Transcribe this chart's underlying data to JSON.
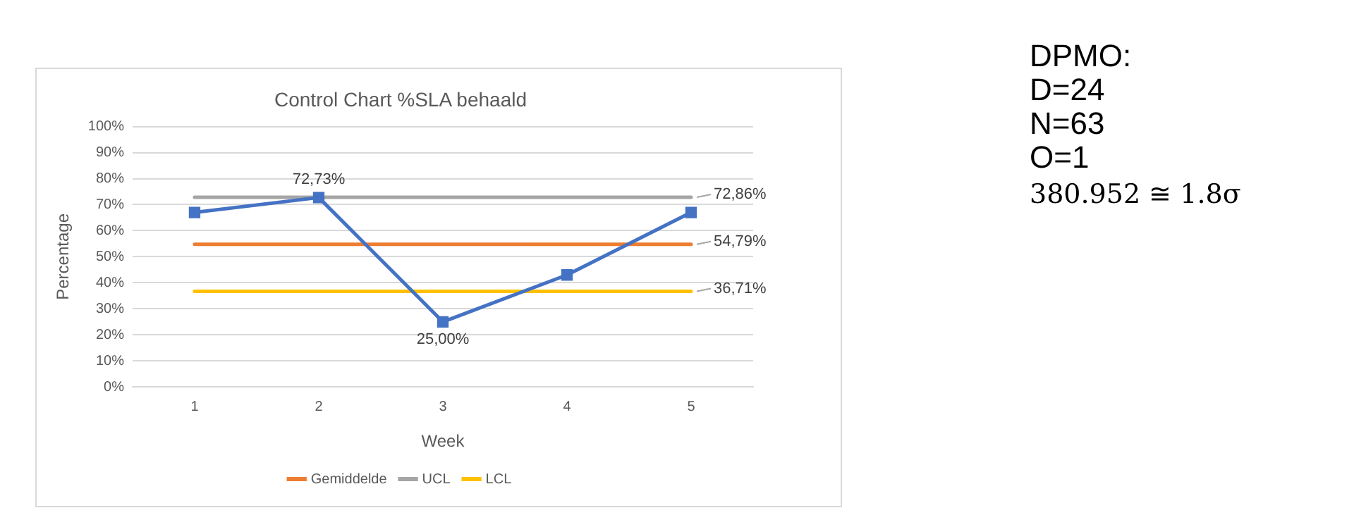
{
  "chart_data": {
    "type": "line",
    "title": "Control Chart %SLA behaald",
    "xlabel": "Week",
    "ylabel": "Percentage",
    "categories": [
      "1",
      "2",
      "3",
      "4",
      "5"
    ],
    "series": [
      {
        "color": "#4472c4",
        "marker": "square",
        "values": [
          67,
          72.73,
          25.0,
          43,
          67
        ],
        "value_labels": [
          null,
          "72,73%",
          "25,00%",
          null,
          null
        ]
      },
      {
        "name": "Gemiddelde",
        "color": "#ed7d31",
        "marker": "none",
        "values": [
          54.79,
          54.79,
          54.79,
          54.79,
          54.79
        ],
        "value_labels": [
          null,
          null,
          null,
          null,
          "54,79%"
        ]
      },
      {
        "name": "UCL",
        "color": "#a5a5a5",
        "marker": "none",
        "values": [
          72.86,
          72.86,
          72.86,
          72.86,
          72.86
        ],
        "value_labels": [
          null,
          null,
          null,
          null,
          "72,86%"
        ]
      },
      {
        "name": "LCL",
        "color": "#ffc000",
        "marker": "none",
        "values": [
          36.71,
          36.71,
          36.71,
          36.71,
          36.71
        ],
        "value_labels": [
          null,
          null,
          null,
          null,
          "36,71%"
        ]
      }
    ],
    "ylim": [
      0,
      100
    ],
    "yticks": [
      {
        "value": 0,
        "label": "0%"
      },
      {
        "value": 10,
        "label": "10%"
      },
      {
        "value": 20,
        "label": "20%"
      },
      {
        "value": 30,
        "label": "30%"
      },
      {
        "value": 40,
        "label": "40%"
      },
      {
        "value": 50,
        "label": "50%"
      },
      {
        "value": 60,
        "label": "60%"
      },
      {
        "value": 70,
        "label": "70%"
      },
      {
        "value": 80,
        "label": "80%"
      },
      {
        "value": 90,
        "label": "90%"
      },
      {
        "value": 100,
        "label": "100%"
      }
    ],
    "grid": "y",
    "legend": "bottom",
    "annotations": [
      "DPMO:",
      "D=24",
      "N=63",
      "O=1",
      "380.952 ≅ 1.8σ"
    ]
  }
}
